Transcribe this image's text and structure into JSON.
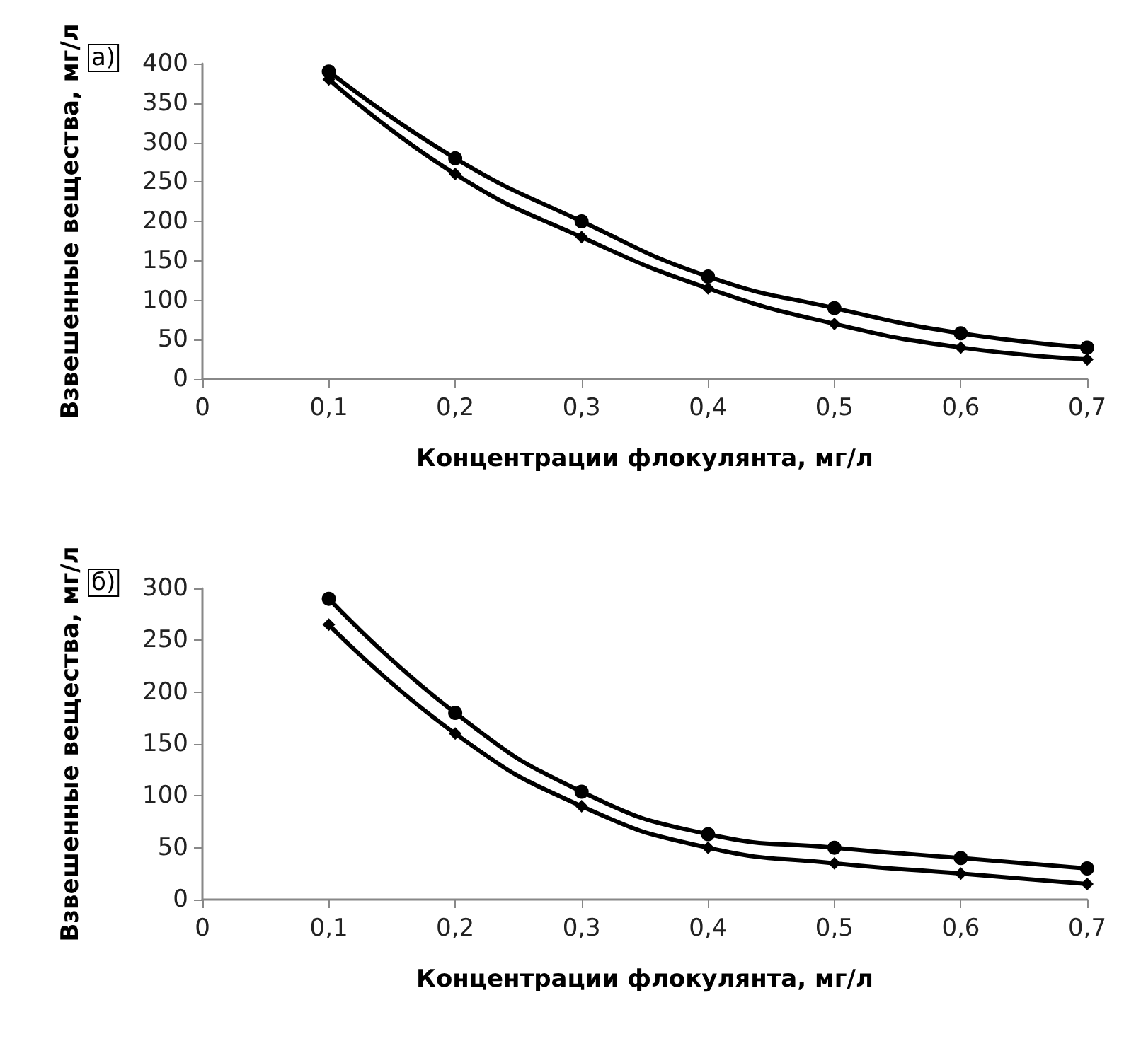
{
  "chart_data": [
    {
      "type": "line",
      "annotations": [
        "а)"
      ],
      "xlabel": "Концентрации флокулянта, мг/л",
      "ylabel": "Взвешенные вещества, мг/л",
      "x": [
        0.1,
        0.2,
        0.3,
        0.4,
        0.5,
        0.6,
        0.7
      ],
      "series": [
        {
          "color": "#000000",
          "marker": "circle",
          "values": [
            390,
            280,
            200,
            130,
            90,
            58,
            40
          ]
        },
        {
          "color": "#000000",
          "marker": "diamond",
          "values": [
            380,
            260,
            180,
            115,
            70,
            40,
            25
          ]
        }
      ],
      "xlim": [
        0,
        0.7
      ],
      "xticks": [
        {
          "value": 0,
          "label": "0"
        },
        {
          "value": 0.1,
          "label": "0,1"
        },
        {
          "value": 0.2,
          "label": "0,2"
        },
        {
          "value": 0.3,
          "label": "0,3"
        },
        {
          "value": 0.4,
          "label": "0,4"
        },
        {
          "value": 0.5,
          "label": "0,5"
        },
        {
          "value": 0.6,
          "label": "0,6"
        },
        {
          "value": 0.7,
          "label": "0,7"
        }
      ],
      "ylim": [
        0,
        400
      ],
      "yticks": [
        0,
        50,
        100,
        150,
        200,
        250,
        300,
        350,
        400
      ],
      "line_style": "solid"
    },
    {
      "type": "line",
      "annotations": [
        "б)"
      ],
      "xlabel": "Концентрации флокулянта, мг/л",
      "ylabel": "Взвешенные вещества, мг/л",
      "x": [
        0.1,
        0.2,
        0.3,
        0.4,
        0.5,
        0.6,
        0.7
      ],
      "series": [
        {
          "color": "#000000",
          "marker": "circle",
          "values": [
            290,
            180,
            104,
            63,
            50,
            40,
            30
          ]
        },
        {
          "color": "#000000",
          "marker": "diamond",
          "values": [
            265,
            160,
            90,
            50,
            35,
            25,
            15
          ]
        }
      ],
      "xlim": [
        0,
        0.7
      ],
      "xticks": [
        {
          "value": 0,
          "label": "0"
        },
        {
          "value": 0.1,
          "label": "0,1"
        },
        {
          "value": 0.2,
          "label": "0,2"
        },
        {
          "value": 0.3,
          "label": "0,3"
        },
        {
          "value": 0.4,
          "label": "0,4"
        },
        {
          "value": 0.5,
          "label": "0,5"
        },
        {
          "value": 0.6,
          "label": "0,6"
        },
        {
          "value": 0.7,
          "label": "0,7"
        }
      ],
      "ylim": [
        0,
        300
      ],
      "yticks": [
        0,
        50,
        100,
        150,
        200,
        250,
        300
      ],
      "line_style": "solid"
    }
  ]
}
